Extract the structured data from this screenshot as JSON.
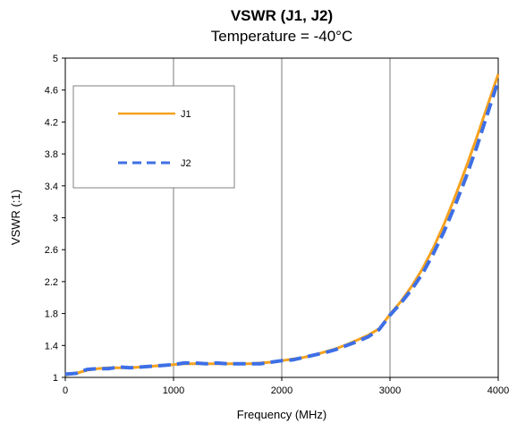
{
  "chart_data": {
    "type": "line",
    "title": "VSWR (J1, J2)",
    "subtitle": "Temperature = -40°C",
    "xlabel": "Frequency (MHz)",
    "ylabel": "VSWR (:1)",
    "xlim": [
      0,
      4000
    ],
    "ylim": [
      1,
      5
    ],
    "x_ticks": [
      0,
      1000,
      2000,
      3000,
      4000
    ],
    "y_ticks": [
      1,
      1.4,
      1.8,
      2.2,
      2.6,
      3,
      3.4,
      3.8,
      4.2,
      4.6,
      5
    ],
    "x_tick_labels": [
      "0",
      "1000",
      "2000",
      "3000",
      "4000"
    ],
    "y_tick_labels": [
      "1",
      "1.4",
      "1.8",
      "2.2",
      "2.6",
      "3",
      "3.4",
      "3.8",
      "4.2",
      "4.6",
      "5"
    ],
    "grid": "vertical",
    "legend_position": "top-left",
    "series": [
      {
        "name": "J1",
        "color": "#f5a21f",
        "style": "solid",
        "x": [
          0,
          100,
          200,
          300,
          400,
          500,
          600,
          700,
          800,
          900,
          1000,
          1100,
          1200,
          1300,
          1400,
          1500,
          1600,
          1700,
          1800,
          1900,
          2000,
          2100,
          2200,
          2300,
          2400,
          2500,
          2600,
          2700,
          2800,
          2900,
          3000,
          3100,
          3200,
          3300,
          3400,
          3500,
          3600,
          3700,
          3800,
          3900,
          4000
        ],
        "values": [
          1.03,
          1.05,
          1.09,
          1.11,
          1.12,
          1.12,
          1.12,
          1.13,
          1.14,
          1.15,
          1.16,
          1.17,
          1.17,
          1.17,
          1.17,
          1.17,
          1.17,
          1.17,
          1.18,
          1.19,
          1.21,
          1.23,
          1.25,
          1.28,
          1.32,
          1.36,
          1.41,
          1.47,
          1.53,
          1.61,
          1.79,
          1.95,
          2.14,
          2.36,
          2.62,
          2.92,
          3.26,
          3.62,
          4.0,
          4.4,
          4.8
        ]
      },
      {
        "name": "J2",
        "color": "#3d6fe6",
        "style": "dashed",
        "x": [
          0,
          100,
          200,
          300,
          400,
          500,
          600,
          700,
          800,
          900,
          1000,
          1100,
          1200,
          1300,
          1400,
          1500,
          1600,
          1700,
          1800,
          1900,
          2000,
          2100,
          2200,
          2300,
          2400,
          2500,
          2600,
          2700,
          2800,
          2900,
          3000,
          3100,
          3200,
          3300,
          3400,
          3500,
          3600,
          3700,
          3800,
          3900,
          4000
        ],
        "values": [
          1.04,
          1.05,
          1.1,
          1.11,
          1.11,
          1.13,
          1.12,
          1.13,
          1.14,
          1.15,
          1.16,
          1.18,
          1.18,
          1.17,
          1.18,
          1.17,
          1.17,
          1.17,
          1.17,
          1.19,
          1.21,
          1.22,
          1.25,
          1.28,
          1.31,
          1.35,
          1.4,
          1.45,
          1.51,
          1.6,
          1.78,
          1.93,
          2.1,
          2.3,
          2.55,
          2.83,
          3.15,
          3.5,
          3.88,
          4.3,
          4.72
        ]
      }
    ]
  }
}
